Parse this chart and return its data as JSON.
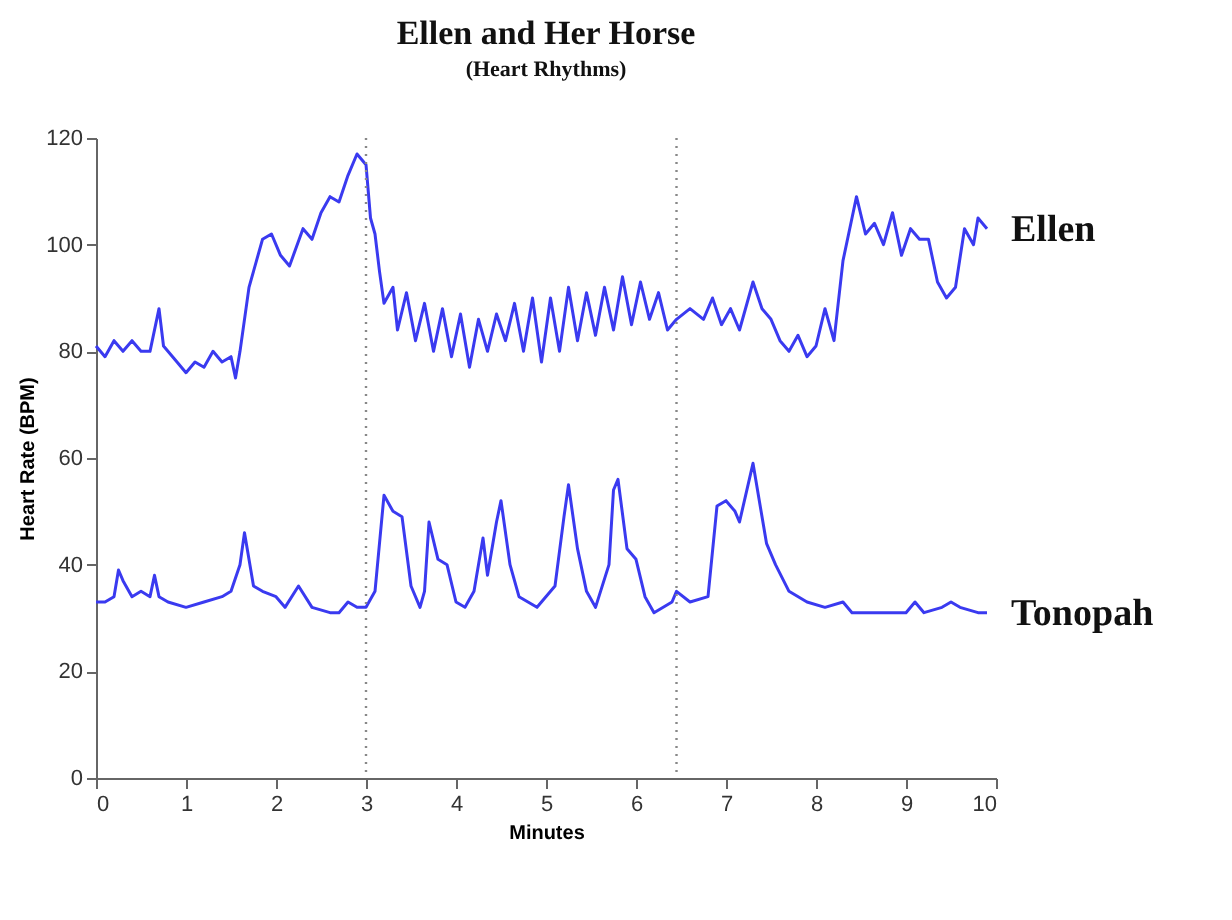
{
  "chart_data": {
    "type": "line",
    "title": "Ellen and Her Horse",
    "subtitle": "(Heart Rhythms)",
    "xlabel": "Minutes",
    "ylabel": "Heart Rate (BPM)",
    "xlim": [
      0,
      10
    ],
    "xticks": [
      0,
      1,
      2,
      3,
      4,
      5,
      6,
      7,
      8,
      9,
      10
    ],
    "ylim": [
      0,
      120
    ],
    "yticks": [
      0,
      20,
      40,
      60,
      80,
      100,
      120
    ],
    "grid": false,
    "legend": false,
    "marker": "none",
    "line_style": "solid",
    "ref_lines": [
      {
        "axis": "x",
        "value": 3,
        "color": "#888888",
        "line_style": "dotted"
      },
      {
        "axis": "x",
        "value": 6.45,
        "color": "#888888",
        "line_style": "dotted"
      }
    ],
    "series": [
      {
        "name": "Ellen",
        "color": "#3a3af0",
        "x": [
          0,
          0.1,
          0.2,
          0.3,
          0.4,
          0.5,
          0.6,
          0.7,
          0.75,
          0.9,
          1.0,
          1.1,
          1.2,
          1.3,
          1.4,
          1.5,
          1.55,
          1.6,
          1.7,
          1.85,
          1.95,
          2.05,
          2.15,
          2.3,
          2.4,
          2.5,
          2.6,
          2.7,
          2.8,
          2.9,
          3.0,
          3.05,
          3.1,
          3.15,
          3.2,
          3.3,
          3.35,
          3.45,
          3.55,
          3.65,
          3.75,
          3.85,
          3.95,
          4.05,
          4.15,
          4.25,
          4.35,
          4.45,
          4.55,
          4.65,
          4.75,
          4.85,
          4.95,
          5.05,
          5.15,
          5.25,
          5.35,
          5.45,
          5.55,
          5.65,
          5.75,
          5.85,
          5.95,
          6.05,
          6.15,
          6.25,
          6.35,
          6.45,
          6.6,
          6.75,
          6.85,
          6.95,
          7.05,
          7.15,
          7.3,
          7.4,
          7.5,
          7.6,
          7.7,
          7.8,
          7.9,
          8.0,
          8.1,
          8.2,
          8.3,
          8.4,
          8.45,
          8.55,
          8.65,
          8.75,
          8.85,
          8.95,
          9.05,
          9.15,
          9.25,
          9.35,
          9.45,
          9.55,
          9.65,
          9.75,
          9.8,
          9.9
        ],
        "values": [
          81,
          79,
          82,
          80,
          82,
          80,
          80,
          88,
          81,
          78,
          76,
          78,
          77,
          80,
          78,
          79,
          75,
          80,
          92,
          101,
          102,
          98,
          96,
          103,
          101,
          106,
          109,
          108,
          113,
          117,
          115,
          105,
          102,
          95,
          89,
          92,
          84,
          91,
          82,
          89,
          80,
          88,
          79,
          87,
          77,
          86,
          80,
          87,
          82,
          89,
          80,
          90,
          78,
          90,
          80,
          92,
          82,
          91,
          83,
          92,
          84,
          94,
          85,
          93,
          86,
          91,
          84,
          86,
          88,
          86,
          90,
          85,
          88,
          84,
          93,
          88,
          86,
          82,
          80,
          83,
          79,
          81,
          88,
          82,
          97,
          105,
          109,
          102,
          104,
          100,
          106,
          98,
          103,
          101,
          101,
          93,
          90,
          92,
          103,
          100,
          105,
          103
        ]
      },
      {
        "name": "Tonopah",
        "color": "#3a3af0",
        "x": [
          0,
          0.1,
          0.2,
          0.25,
          0.3,
          0.4,
          0.5,
          0.6,
          0.65,
          0.7,
          0.8,
          1.0,
          1.2,
          1.4,
          1.5,
          1.6,
          1.65,
          1.75,
          1.85,
          2.0,
          2.1,
          2.25,
          2.4,
          2.6,
          2.7,
          2.8,
          2.9,
          3.0,
          3.1,
          3.2,
          3.3,
          3.4,
          3.5,
          3.6,
          3.65,
          3.7,
          3.8,
          3.9,
          4.0,
          4.1,
          4.2,
          4.3,
          4.35,
          4.45,
          4.5,
          4.6,
          4.7,
          4.9,
          5.1,
          5.2,
          5.25,
          5.35,
          5.45,
          5.55,
          5.7,
          5.75,
          5.8,
          5.9,
          6.0,
          6.1,
          6.2,
          6.4,
          6.45,
          6.6,
          6.8,
          6.9,
          7.0,
          7.1,
          7.15,
          7.3,
          7.45,
          7.55,
          7.7,
          7.9,
          8.1,
          8.3,
          8.4,
          8.6,
          8.8,
          9.0,
          9.1,
          9.2,
          9.4,
          9.5,
          9.6,
          9.8,
          9.9
        ],
        "values": [
          33,
          33,
          34,
          39,
          37,
          34,
          35,
          34,
          38,
          34,
          33,
          32,
          33,
          34,
          35,
          40,
          46,
          36,
          35,
          34,
          32,
          36,
          32,
          31,
          31,
          33,
          32,
          32,
          35,
          53,
          50,
          49,
          36,
          32,
          35,
          48,
          41,
          40,
          33,
          32,
          35,
          45,
          38,
          48,
          52,
          40,
          34,
          32,
          36,
          49,
          55,
          43,
          35,
          32,
          40,
          54,
          56,
          43,
          41,
          34,
          31,
          33,
          35,
          33,
          34,
          51,
          52,
          50,
          48,
          59,
          44,
          40,
          35,
          33,
          32,
          33,
          31,
          31,
          31,
          31,
          33,
          31,
          32,
          33,
          32,
          31,
          31
        ]
      }
    ]
  }
}
